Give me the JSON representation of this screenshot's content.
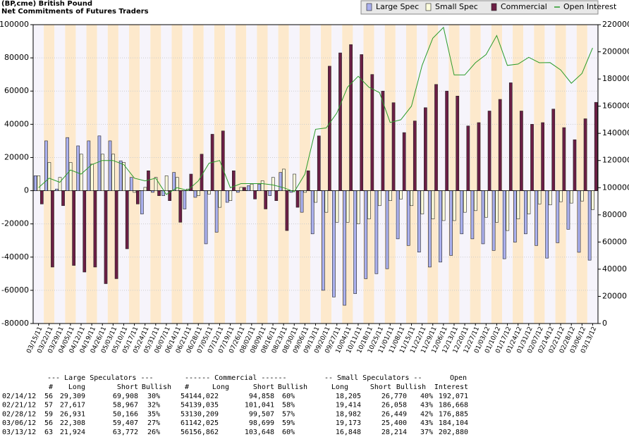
{
  "chart_data": {
    "type": "bar",
    "title": "(BP,cme) British Pound",
    "subtitle": "Net Commitments of Futures Traders",
    "categories": [
      "03/15/11",
      "03/22/11",
      "03/29/11",
      "04/05/11",
      "04/12/11",
      "04/19/11",
      "04/26/11",
      "05/03/11",
      "05/10/11",
      "05/17/11",
      "05/24/11",
      "05/31/11",
      "06/07/11",
      "06/14/11",
      "06/21/11",
      "06/28/11",
      "07/05/11",
      "07/12/11",
      "07/19/11",
      "07/26/11",
      "08/02/11",
      "08/09/11",
      "08/16/11",
      "08/23/11",
      "08/30/11",
      "09/06/11",
      "09/13/11",
      "09/20/11",
      "09/27/11",
      "10/04/11",
      "10/11/11",
      "10/18/11",
      "10/25/11",
      "11/01/11",
      "11/08/11",
      "11/15/11",
      "11/22/11",
      "11/29/11",
      "12/06/11",
      "12/13/11",
      "12/20/11",
      "12/27/11",
      "01/03/12",
      "01/10/12",
      "01/17/12",
      "01/24/12",
      "01/31/12",
      "02/07/12",
      "02/14/12",
      "02/21/12",
      "02/28/12",
      "03/06/12",
      "03/13/12"
    ],
    "series": [
      {
        "name": "Large Spec",
        "color": "#aab0ee",
        "type": "bar",
        "values": [
          9000,
          30000,
          1000,
          32000,
          27000,
          30000,
          33000,
          30000,
          18000,
          8000,
          -14000,
          -1000,
          -3000,
          11000,
          -11000,
          -4000,
          -32000,
          -25000,
          -7000,
          -1000,
          3000,
          4000,
          -3000,
          11000,
          -1000,
          -13000,
          -26000,
          -60000,
          -64000,
          -69000,
          -62000,
          -53000,
          -50000,
          -47000,
          -29000,
          -33000,
          -37000,
          -46000,
          -43000,
          -39000,
          -26000,
          -29000,
          -32000,
          -36000,
          -41000,
          -31000,
          -26000,
          -33000,
          -40599,
          -31350,
          -23235,
          -37099,
          -41848
        ]
      },
      {
        "name": "Small Spec",
        "color": "#ffffdd",
        "type": "bar",
        "values": [
          9000,
          17000,
          8000,
          17000,
          22000,
          16000,
          22000,
          22000,
          17000,
          -1000,
          2000,
          8000,
          9000,
          8000,
          1000,
          -3000,
          -2000,
          -10000,
          -6000,
          2000,
          4000,
          6000,
          8000,
          13000,
          10000,
          -1000,
          -7000,
          -13000,
          -19000,
          -19000,
          -20000,
          -17000,
          -9000,
          -6000,
          -5000,
          -9000,
          -14000,
          -17000,
          -18000,
          -18000,
          -13000,
          -12000,
          -16000,
          -19000,
          -24000,
          -17000,
          -14000,
          -8000,
          -8565,
          -6644,
          -7467,
          -6227,
          -11366
        ]
      },
      {
        "name": "Commercial",
        "color": "#6b1e45",
        "type": "bar",
        "values": [
          -8000,
          -46000,
          -9000,
          -45000,
          -49000,
          -46000,
          -56000,
          -53000,
          -35000,
          -8000,
          12000,
          -3000,
          -6000,
          -19000,
          10000,
          22000,
          34000,
          36000,
          12000,
          2000,
          -5000,
          -11000,
          -6000,
          -24000,
          -10000,
          12000,
          33000,
          75000,
          83000,
          88000,
          82000,
          70000,
          60000,
          53000,
          35000,
          42000,
          50000,
          64000,
          60000,
          57000,
          39000,
          41000,
          48000,
          55000,
          65000,
          48000,
          40000,
          41000,
          49164,
          37994,
          30702,
          43326,
          53214
        ]
      },
      {
        "name": "Open Interest",
        "color": "#2a9b2a",
        "type": "line",
        "axis": "y2",
        "values": [
          100000,
          107000,
          104000,
          113000,
          110000,
          117000,
          120000,
          120000,
          117000,
          107000,
          105000,
          107000,
          95000,
          100000,
          98000,
          105000,
          118000,
          120000,
          100000,
          103000,
          103000,
          103000,
          102000,
          100000,
          97000,
          110000,
          143000,
          144000,
          155000,
          174000,
          182000,
          174000,
          170000,
          148000,
          150000,
          160000,
          190000,
          210000,
          218000,
          183000,
          183000,
          192000,
          198000,
          212000,
          190000,
          191000,
          196000,
          192000,
          192071,
          186668,
          176885,
          184104,
          202880
        ]
      }
    ],
    "ylim": [
      -80000,
      100000
    ],
    "yticks": [
      -80000,
      -60000,
      -40000,
      -20000,
      0,
      20000,
      40000,
      60000,
      80000,
      100000
    ],
    "y2lim": [
      0,
      220000
    ],
    "y2ticks": [
      0,
      20000,
      40000,
      60000,
      80000,
      100000,
      120000,
      140000,
      160000,
      180000,
      200000,
      220000
    ],
    "grid": true,
    "legend": "top-right"
  },
  "table": {
    "groups": [
      "--- Large Speculators ---",
      "------ Commercial ------",
      "-- Small Speculators --",
      "Open"
    ],
    "columns": [
      "#",
      "Long",
      "Short",
      "Bullish",
      "#",
      "Long",
      "Short",
      "Bullish",
      "Long",
      "Short",
      "Bullish",
      "Interest"
    ],
    "rows": [
      [
        "02/14/12",
        "56",
        "29,309",
        "69,908",
        "30%",
        "54",
        "144,022",
        "94,858",
        "60%",
        "18,205",
        "26,770",
        "40%",
        "192,071"
      ],
      [
        "02/21/12",
        "57",
        "27,617",
        "58,967",
        "32%",
        "54",
        "139,035",
        "101,041",
        "58%",
        "19,414",
        "26,058",
        "43%",
        "186,668"
      ],
      [
        "02/28/12",
        "59",
        "26,931",
        "50,166",
        "35%",
        "53",
        "130,209",
        "99,507",
        "57%",
        "18,982",
        "26,449",
        "42%",
        "176,885"
      ],
      [
        "03/06/12",
        "56",
        "22,308",
        "59,407",
        "27%",
        "61",
        "142,025",
        "98,699",
        "59%",
        "19,173",
        "25,400",
        "43%",
        "184,104"
      ],
      [
        "03/13/12",
        "63",
        "21,924",
        "63,772",
        "26%",
        "56",
        "156,862",
        "103,648",
        "60%",
        "16,848",
        "28,214",
        "37%",
        "202,880"
      ]
    ]
  }
}
